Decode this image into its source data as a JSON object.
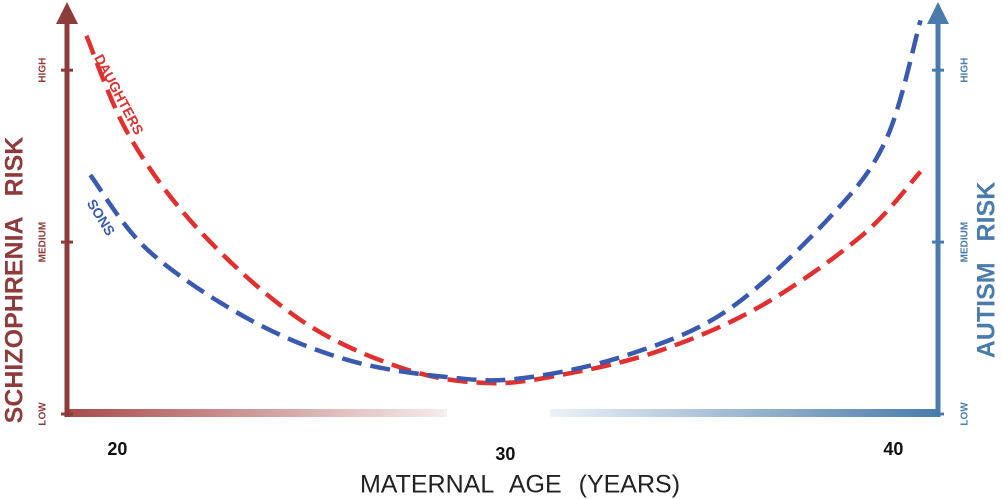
{
  "chart_data": {
    "type": "line",
    "xlabel": "MATERNAL AGE (YEARS)",
    "ylabel": "SCHIZOPHRENIA RISK",
    "y2label": "AUTISM RISK",
    "xlim": [
      18.7,
      41.15
    ],
    "xticks": [
      20,
      30,
      40
    ],
    "ylim": [
      0,
      2.35
    ],
    "yticks": [
      {
        "value": 0,
        "label": "LOW"
      },
      {
        "value": 1,
        "label": "MEDIUM"
      },
      {
        "value": 2,
        "label": "HIGH"
      }
    ],
    "y2lim": [
      0,
      2.35
    ],
    "y2ticks": [
      {
        "value": 0,
        "label": "LOW"
      },
      {
        "value": 1,
        "label": "MEDIUM"
      },
      {
        "value": 2,
        "label": "HIGH"
      }
    ],
    "ycolor": "#8e3b3b",
    "y2color": "#4a7cab",
    "series": [
      {
        "name": "DAUGHTERS",
        "color": "#e03030",
        "x": [
          19.2,
          20.3,
          22.1,
          24.7,
          27.3,
          29.5,
          31.5,
          34.0,
          36.6,
          39.2,
          40.7
        ],
        "values": [
          2.2,
          1.62,
          1.07,
          0.55,
          0.27,
          0.18,
          0.23,
          0.37,
          0.63,
          1.04,
          1.41
        ]
      },
      {
        "name": "SONS",
        "color": "#3a5ab0",
        "x": [
          19.3,
          20.8,
          23.4,
          26.0,
          28.7,
          30.5,
          33.1,
          35.7,
          38.3,
          39.8,
          40.7
        ],
        "values": [
          1.39,
          0.95,
          0.55,
          0.31,
          0.21,
          0.21,
          0.34,
          0.6,
          1.13,
          1.59,
          2.29
        ]
      }
    ]
  }
}
